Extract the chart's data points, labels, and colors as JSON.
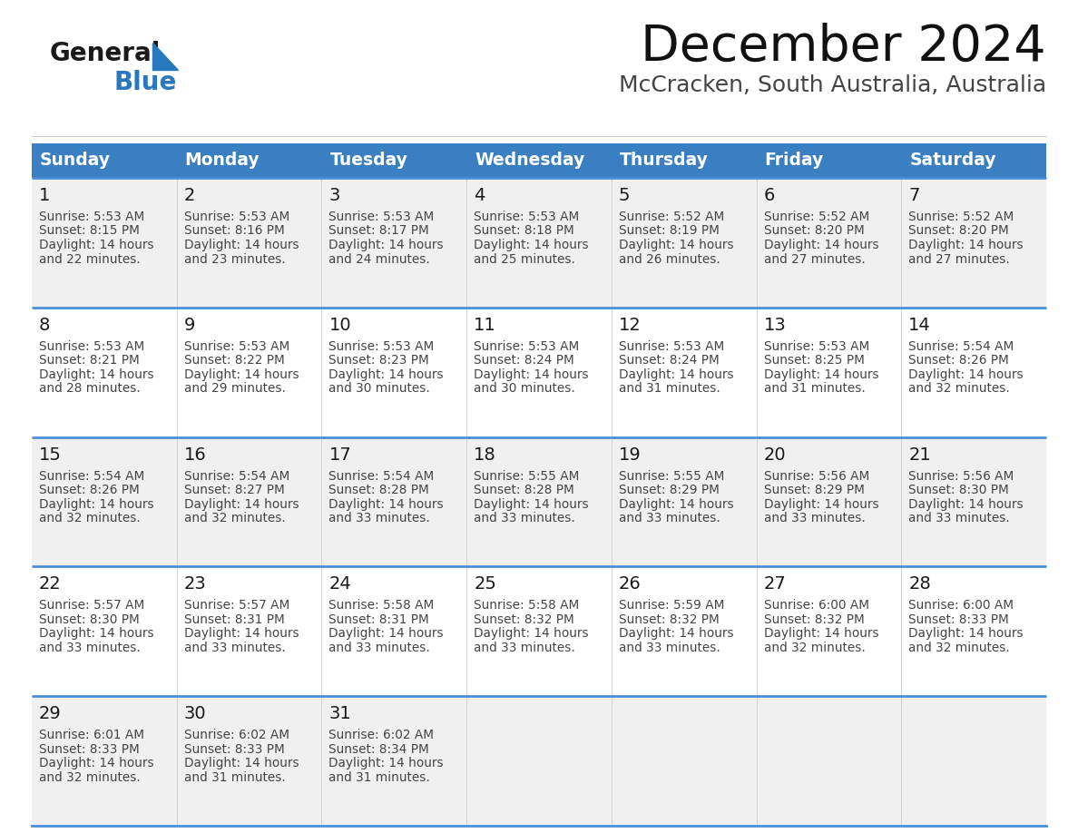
{
  "title": "December 2024",
  "subtitle": "McCracken, South Australia, Australia",
  "days_of_week": [
    "Sunday",
    "Monday",
    "Tuesday",
    "Wednesday",
    "Thursday",
    "Friday",
    "Saturday"
  ],
  "header_bg": "#3a7fc1",
  "header_text": "#ffffff",
  "row_bg_odd": "#f0f0f0",
  "row_bg_even": "#ffffff",
  "row_divider": "#4a90d9",
  "text_color": "#444444",
  "date_color": "#222222",
  "calendar": [
    [
      {
        "day": "1",
        "sunrise": "5:53 AM",
        "sunset": "8:15 PM",
        "daylight": "14 hours",
        "daylight2": "and 22 minutes."
      },
      {
        "day": "2",
        "sunrise": "5:53 AM",
        "sunset": "8:16 PM",
        "daylight": "14 hours",
        "daylight2": "and 23 minutes."
      },
      {
        "day": "3",
        "sunrise": "5:53 AM",
        "sunset": "8:17 PM",
        "daylight": "14 hours",
        "daylight2": "and 24 minutes."
      },
      {
        "day": "4",
        "sunrise": "5:53 AM",
        "sunset": "8:18 PM",
        "daylight": "14 hours",
        "daylight2": "and 25 minutes."
      },
      {
        "day": "5",
        "sunrise": "5:52 AM",
        "sunset": "8:19 PM",
        "daylight": "14 hours",
        "daylight2": "and 26 minutes."
      },
      {
        "day": "6",
        "sunrise": "5:52 AM",
        "sunset": "8:20 PM",
        "daylight": "14 hours",
        "daylight2": "and 27 minutes."
      },
      {
        "day": "7",
        "sunrise": "5:52 AM",
        "sunset": "8:20 PM",
        "daylight": "14 hours",
        "daylight2": "and 27 minutes."
      }
    ],
    [
      {
        "day": "8",
        "sunrise": "5:53 AM",
        "sunset": "8:21 PM",
        "daylight": "14 hours",
        "daylight2": "and 28 minutes."
      },
      {
        "day": "9",
        "sunrise": "5:53 AM",
        "sunset": "8:22 PM",
        "daylight": "14 hours",
        "daylight2": "and 29 minutes."
      },
      {
        "day": "10",
        "sunrise": "5:53 AM",
        "sunset": "8:23 PM",
        "daylight": "14 hours",
        "daylight2": "and 30 minutes."
      },
      {
        "day": "11",
        "sunrise": "5:53 AM",
        "sunset": "8:24 PM",
        "daylight": "14 hours",
        "daylight2": "and 30 minutes."
      },
      {
        "day": "12",
        "sunrise": "5:53 AM",
        "sunset": "8:24 PM",
        "daylight": "14 hours",
        "daylight2": "and 31 minutes."
      },
      {
        "day": "13",
        "sunrise": "5:53 AM",
        "sunset": "8:25 PM",
        "daylight": "14 hours",
        "daylight2": "and 31 minutes."
      },
      {
        "day": "14",
        "sunrise": "5:54 AM",
        "sunset": "8:26 PM",
        "daylight": "14 hours",
        "daylight2": "and 32 minutes."
      }
    ],
    [
      {
        "day": "15",
        "sunrise": "5:54 AM",
        "sunset": "8:26 PM",
        "daylight": "14 hours",
        "daylight2": "and 32 minutes."
      },
      {
        "day": "16",
        "sunrise": "5:54 AM",
        "sunset": "8:27 PM",
        "daylight": "14 hours",
        "daylight2": "and 32 minutes."
      },
      {
        "day": "17",
        "sunrise": "5:54 AM",
        "sunset": "8:28 PM",
        "daylight": "14 hours",
        "daylight2": "and 33 minutes."
      },
      {
        "day": "18",
        "sunrise": "5:55 AM",
        "sunset": "8:28 PM",
        "daylight": "14 hours",
        "daylight2": "and 33 minutes."
      },
      {
        "day": "19",
        "sunrise": "5:55 AM",
        "sunset": "8:29 PM",
        "daylight": "14 hours",
        "daylight2": "and 33 minutes."
      },
      {
        "day": "20",
        "sunrise": "5:56 AM",
        "sunset": "8:29 PM",
        "daylight": "14 hours",
        "daylight2": "and 33 minutes."
      },
      {
        "day": "21",
        "sunrise": "5:56 AM",
        "sunset": "8:30 PM",
        "daylight": "14 hours",
        "daylight2": "and 33 minutes."
      }
    ],
    [
      {
        "day": "22",
        "sunrise": "5:57 AM",
        "sunset": "8:30 PM",
        "daylight": "14 hours",
        "daylight2": "and 33 minutes."
      },
      {
        "day": "23",
        "sunrise": "5:57 AM",
        "sunset": "8:31 PM",
        "daylight": "14 hours",
        "daylight2": "and 33 minutes."
      },
      {
        "day": "24",
        "sunrise": "5:58 AM",
        "sunset": "8:31 PM",
        "daylight": "14 hours",
        "daylight2": "and 33 minutes."
      },
      {
        "day": "25",
        "sunrise": "5:58 AM",
        "sunset": "8:32 PM",
        "daylight": "14 hours",
        "daylight2": "and 33 minutes."
      },
      {
        "day": "26",
        "sunrise": "5:59 AM",
        "sunset": "8:32 PM",
        "daylight": "14 hours",
        "daylight2": "and 33 minutes."
      },
      {
        "day": "27",
        "sunrise": "6:00 AM",
        "sunset": "8:32 PM",
        "daylight": "14 hours",
        "daylight2": "and 32 minutes."
      },
      {
        "day": "28",
        "sunrise": "6:00 AM",
        "sunset": "8:33 PM",
        "daylight": "14 hours",
        "daylight2": "and 32 minutes."
      }
    ],
    [
      {
        "day": "29",
        "sunrise": "6:01 AM",
        "sunset": "8:33 PM",
        "daylight": "14 hours",
        "daylight2": "and 32 minutes."
      },
      {
        "day": "30",
        "sunrise": "6:02 AM",
        "sunset": "8:33 PM",
        "daylight": "14 hours",
        "daylight2": "and 31 minutes."
      },
      {
        "day": "31",
        "sunrise": "6:02 AM",
        "sunset": "8:34 PM",
        "daylight": "14 hours",
        "daylight2": "and 31 minutes."
      },
      null,
      null,
      null,
      null
    ]
  ],
  "logo_general_color": "#1a1a1a",
  "logo_blue_color": "#2878c0",
  "logo_triangle_color": "#2878c0"
}
